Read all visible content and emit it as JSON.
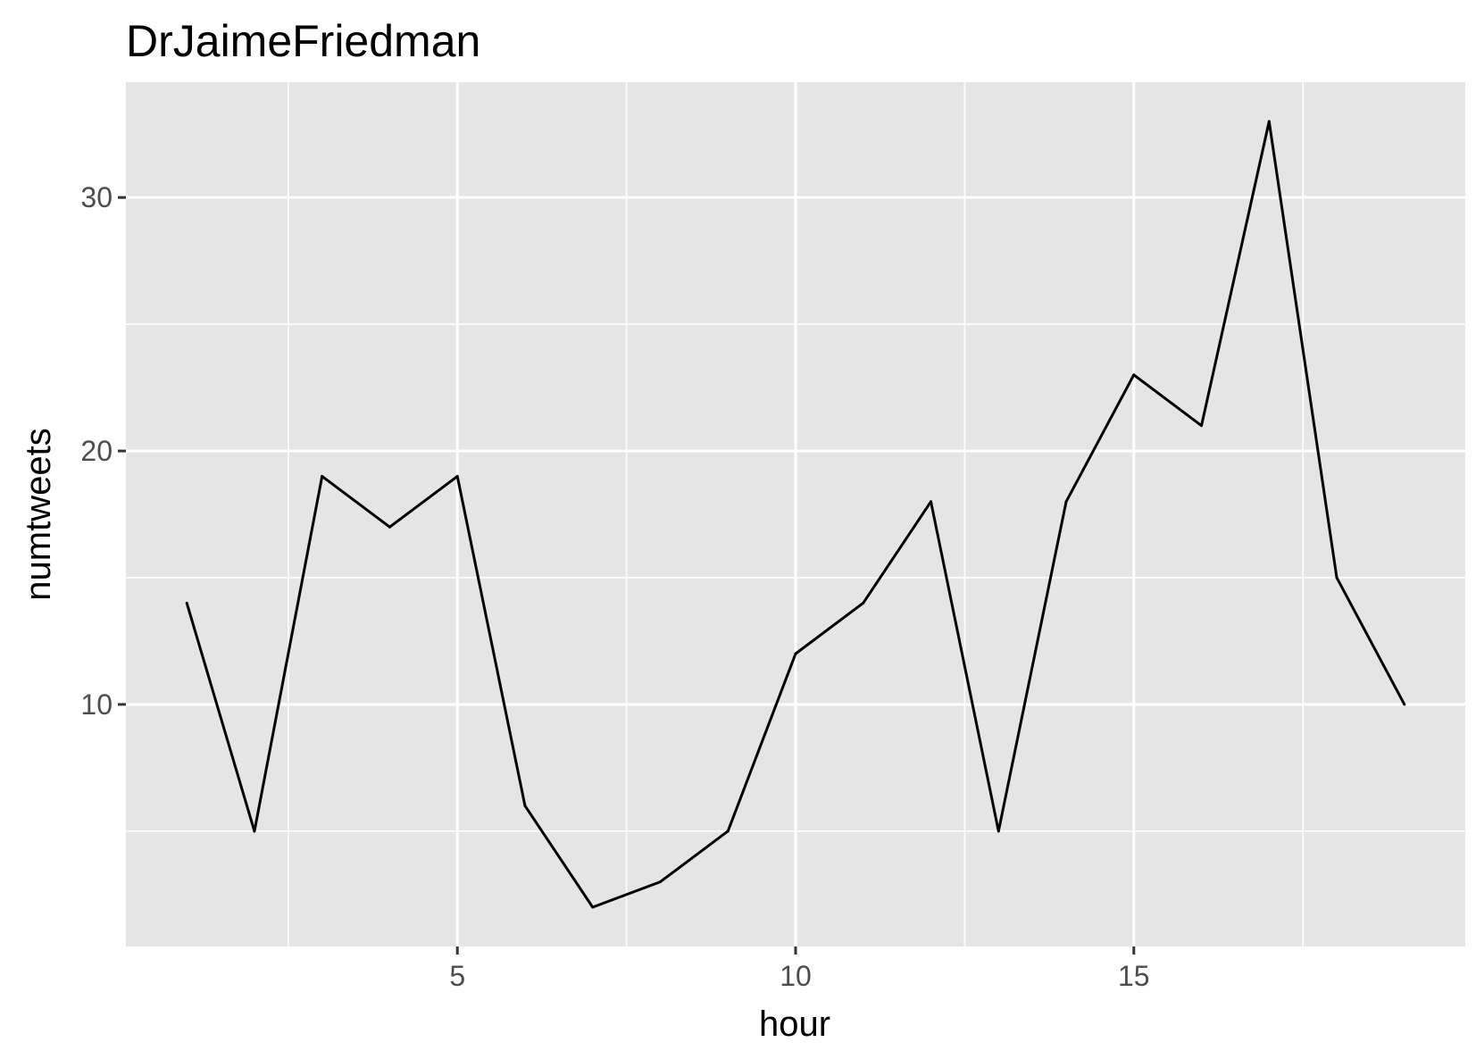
{
  "chart_data": {
    "type": "line",
    "title": "DrJaimeFriedman",
    "xlabel": "hour",
    "ylabel": "numtweets",
    "x": [
      1,
      2,
      3,
      4,
      5,
      6,
      7,
      8,
      9,
      10,
      11,
      12,
      13,
      14,
      15,
      16,
      17,
      18,
      19
    ],
    "series": [
      {
        "values": [
          14,
          5,
          19,
          17,
          19,
          6,
          2,
          3,
          5,
          12,
          14,
          18,
          5,
          18,
          23,
          21,
          33,
          15,
          10
        ]
      }
    ],
    "xlim": [
      0.1,
      19.9
    ],
    "ylim": [
      0.45,
      34.55
    ],
    "x_ticks": [
      5,
      10,
      15
    ],
    "y_ticks": [
      10,
      20,
      30
    ],
    "x_minor_ticks": [
      2.5,
      7.5,
      12.5,
      17.5
    ],
    "y_minor_ticks": [
      5,
      15,
      25
    ],
    "grid": true,
    "colors": {
      "panel_background": "#e5e5e5",
      "grid": "#ffffff",
      "line": "#000000",
      "tick_label": "#4d4d4d",
      "tick_mark": "#333333"
    }
  }
}
